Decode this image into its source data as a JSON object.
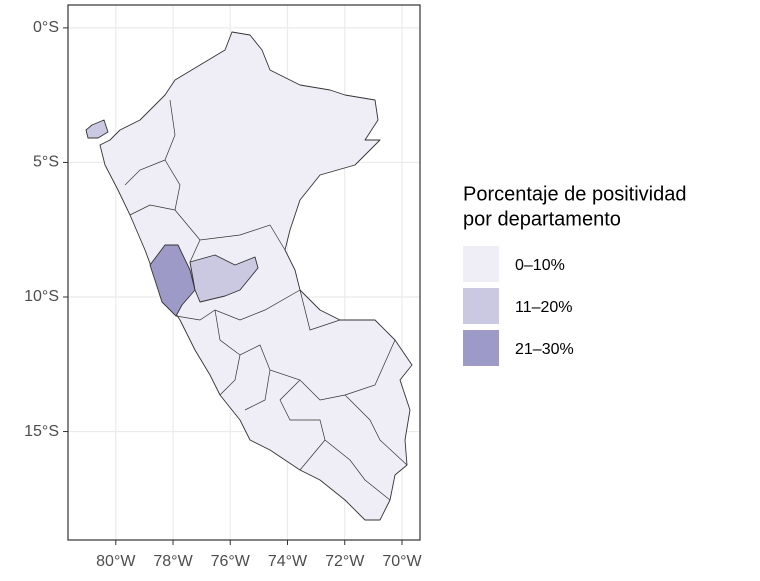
{
  "chart_data": {
    "type": "map",
    "xlim": [
      -81.67,
      -69.37
    ],
    "ylim": [
      -19.03,
      0.85
    ],
    "xticks": [
      {
        "value": -80,
        "label": "80°W"
      },
      {
        "value": -78,
        "label": "78°W"
      },
      {
        "value": -76,
        "label": "76°W"
      },
      {
        "value": -74,
        "label": "74°W"
      },
      {
        "value": -72,
        "label": "72°W"
      },
      {
        "value": -70,
        "label": "70°W"
      }
    ],
    "yticks": [
      {
        "value": 0,
        "label": "0°S"
      },
      {
        "value": -5,
        "label": "5°S"
      },
      {
        "value": -10,
        "label": "10°S"
      },
      {
        "value": -15,
        "label": "15°S"
      }
    ],
    "grid": true,
    "legend_title": [
      "Porcentaje de positividad",
      "por departamento"
    ],
    "legend_entries": [
      {
        "label": "0–10%",
        "color": "#efedf5"
      },
      {
        "label": "11–20%",
        "color": "#cbc9e2"
      },
      {
        "label": "21–30%",
        "color": "#9e9ac8"
      }
    ]
  }
}
